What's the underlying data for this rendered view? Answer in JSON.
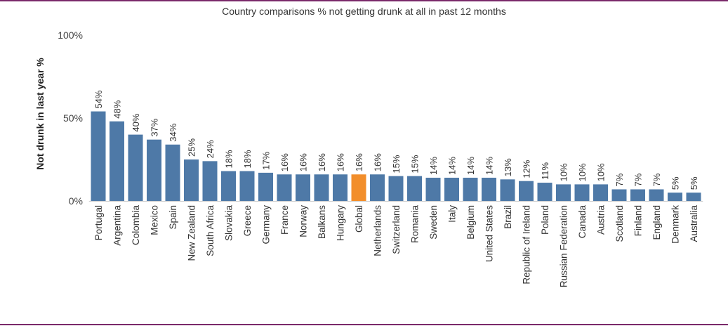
{
  "chart_data": {
    "type": "bar",
    "title": "Country comparisons % not getting drunk at all in past 12 months",
    "ylabel": "Not drunk in last year %",
    "xlabel": "",
    "ylim": [
      0,
      100
    ],
    "yticks": [
      "0%",
      "50%",
      "100%"
    ],
    "ytick_values": [
      0,
      50,
      100
    ],
    "grid": false,
    "categories": [
      "Portugal",
      "Argentina",
      "Colombia",
      "Mexico",
      "Spain",
      "New Zealand",
      "South Africa",
      "Slovakia",
      "Greece",
      "Germany",
      "France",
      "Norway",
      "Balkans",
      "Hungary",
      "Global",
      "Netherlands",
      "Switzerland",
      "Romania",
      "Sweden",
      "Italy",
      "Belgium",
      "United States",
      "Brazil",
      "Republic of Ireland",
      "Poland",
      "Russian Federation",
      "Canada",
      "Austria",
      "Scotland",
      "Finland",
      "England",
      "Denmark",
      "Australia"
    ],
    "values": [
      54,
      48,
      40,
      37,
      34,
      25,
      24,
      18,
      18,
      17,
      16,
      16,
      16,
      16,
      16,
      16,
      15,
      15,
      14,
      14,
      14,
      14,
      13,
      12,
      11,
      10,
      10,
      10,
      7,
      7,
      7,
      5,
      5
    ],
    "value_labels": [
      "54%",
      "48%",
      "40%",
      "37%",
      "34%",
      "25%",
      "24%",
      "18%",
      "18%",
      "17%",
      "16%",
      "16%",
      "16%",
      "16%",
      "16%",
      "16%",
      "15%",
      "15%",
      "14%",
      "14%",
      "14%",
      "14%",
      "13%",
      "12%",
      "11%",
      "10%",
      "10%",
      "10%",
      "7%",
      "7%",
      "7%",
      "5%",
      "5%"
    ],
    "highlight": "Global",
    "colors": {
      "bar": "#4e79a7",
      "highlight": "#f28e2b"
    }
  }
}
